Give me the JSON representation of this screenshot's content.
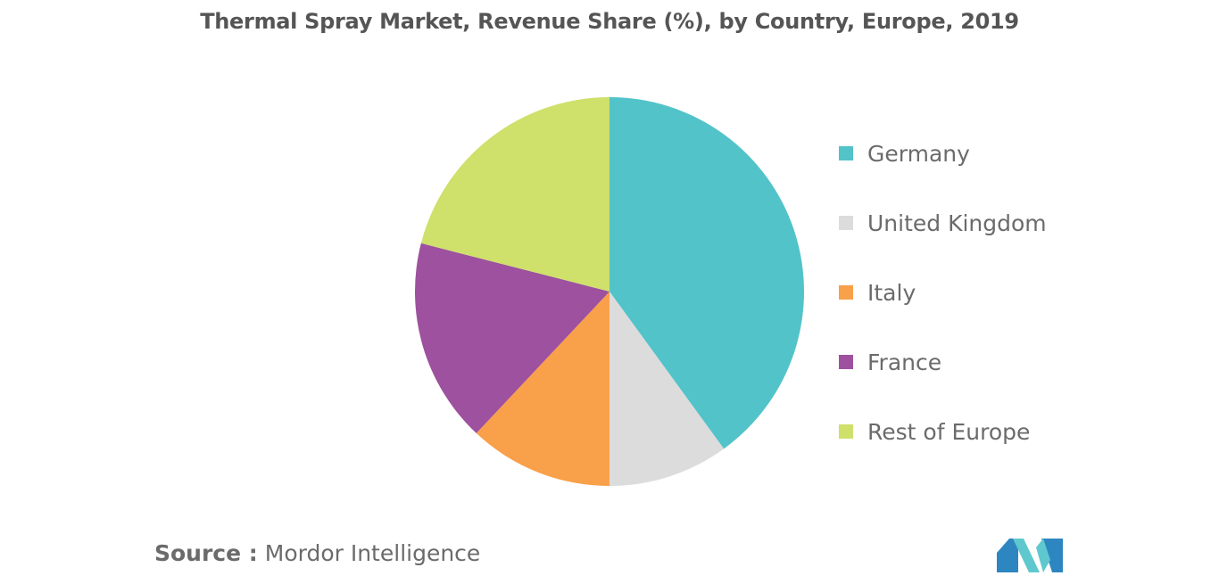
{
  "chart_data": {
    "type": "pie",
    "title": "Thermal Spray Market, Revenue Share (%), by Country, Europe, 2019",
    "categories": [
      "Germany",
      "United Kingdom",
      "Italy",
      "France",
      "Rest of Europe"
    ],
    "values": [
      40,
      10,
      12,
      17,
      21
    ],
    "colors": [
      "#52c3c9",
      "#dcdcdc",
      "#f9a04a",
      "#9d519e",
      "#cfe06b"
    ],
    "legend_position": "right"
  },
  "source": {
    "prefix": "Source :",
    "text": "Mordor Intelligence"
  },
  "logo": {
    "icon": "mordor-intelligence-logo-icon",
    "colors": [
      "#2e86c1",
      "#5fc8cf"
    ]
  }
}
